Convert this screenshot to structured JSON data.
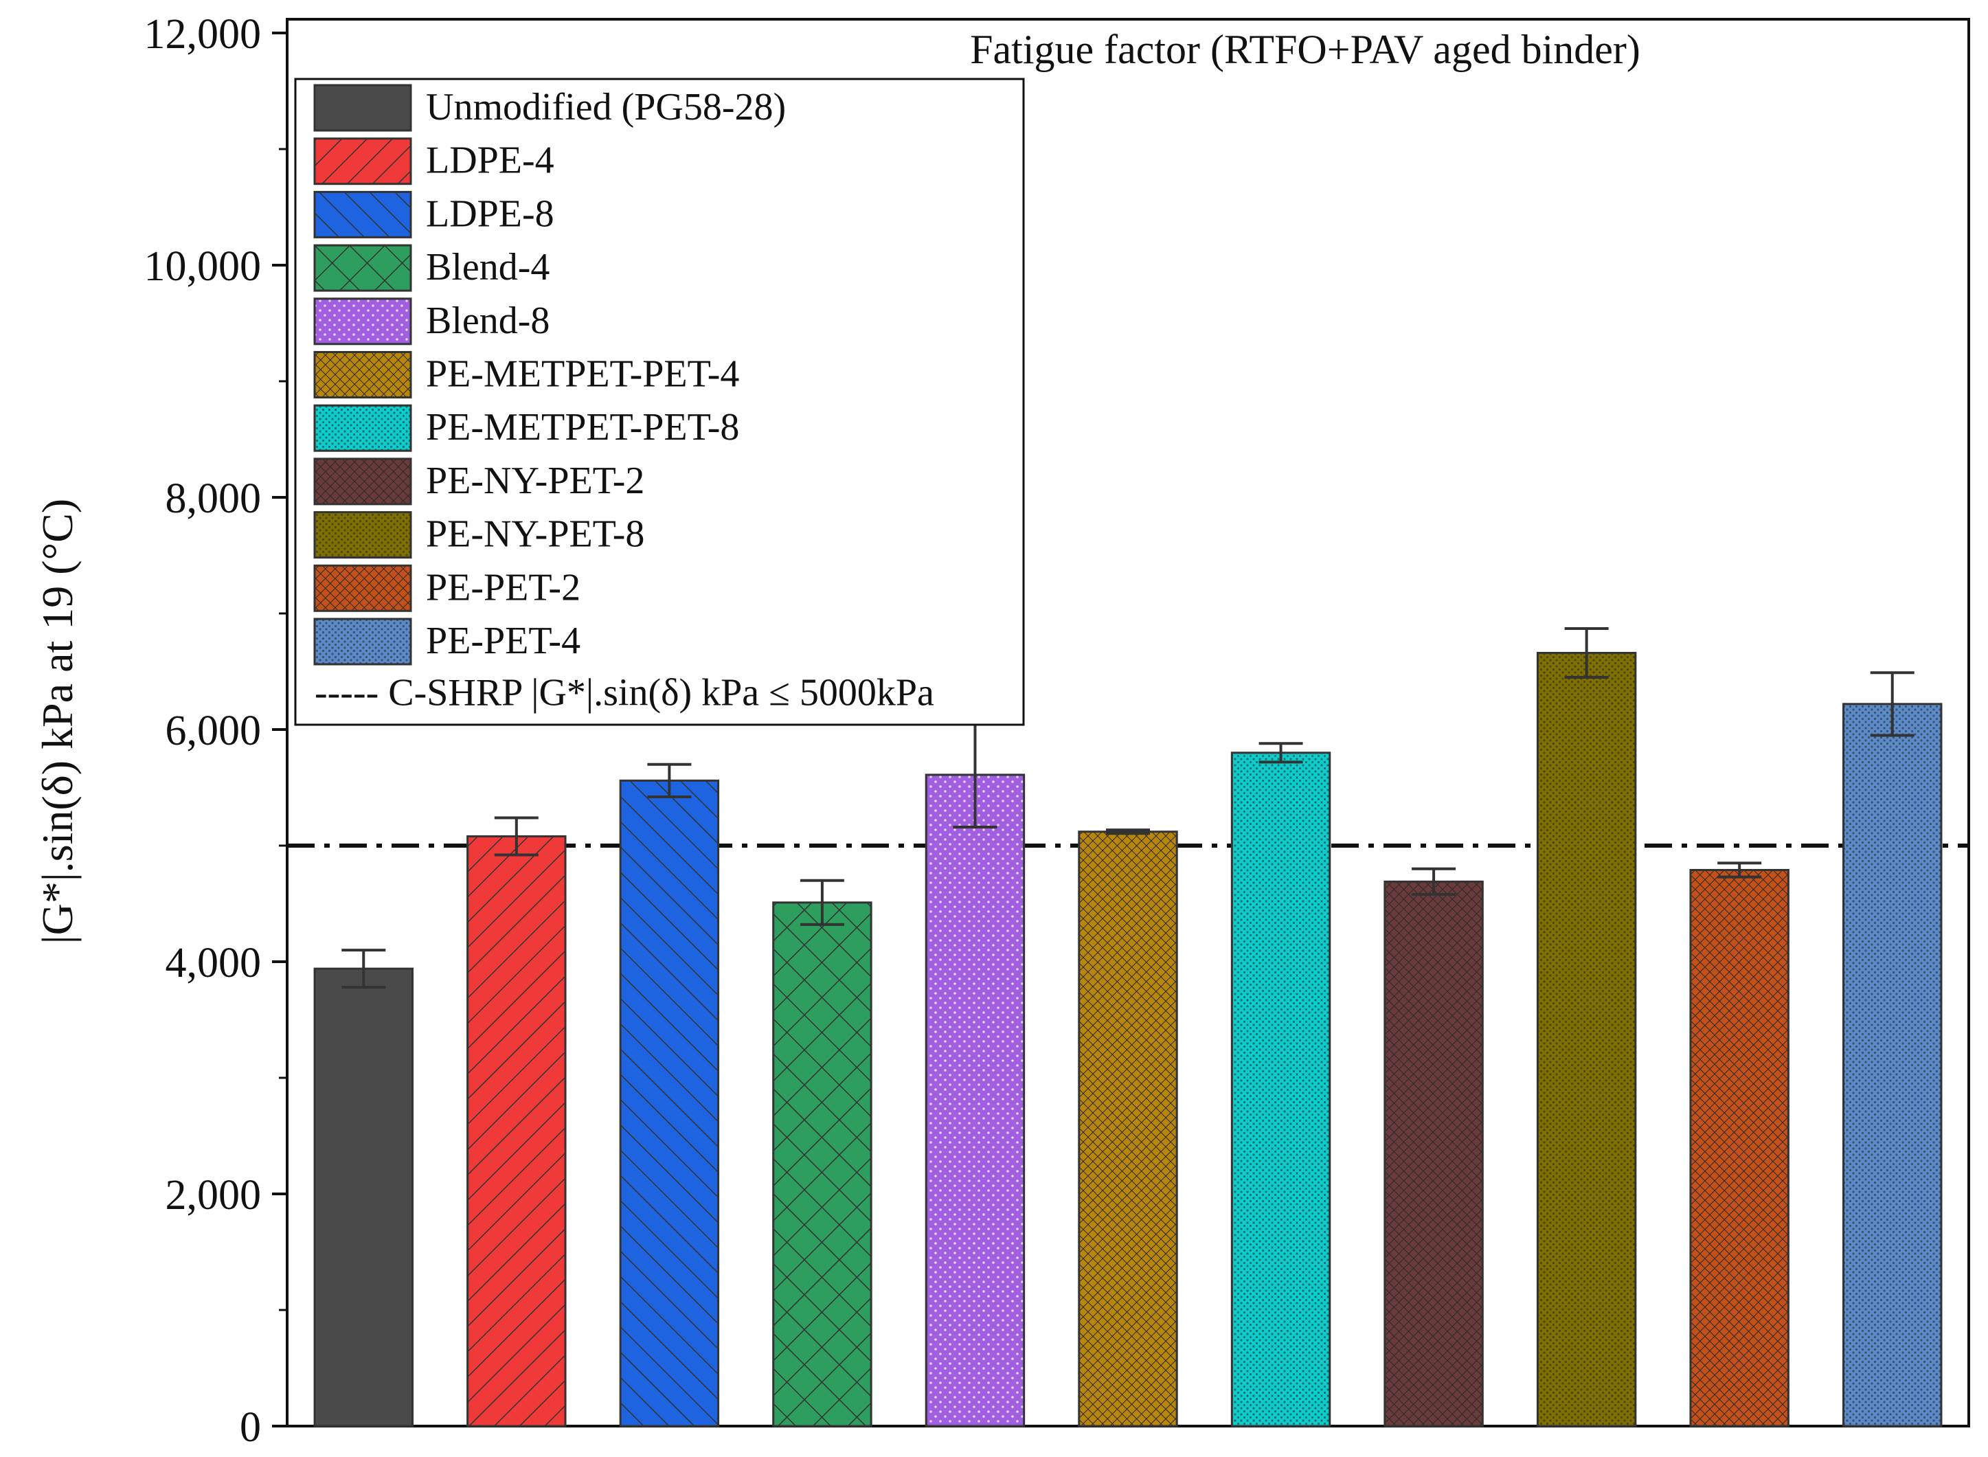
{
  "chart_data": {
    "type": "bar",
    "title": "Fatigue factor (RTFO+PAV aged binder)",
    "ylabel": "|G*|.sin(δ) kPa at 19 (°C)",
    "xlabel": "",
    "ylim": [
      0,
      12000
    ],
    "yticks": [
      0,
      2000,
      4000,
      6000,
      8000,
      10000,
      12000
    ],
    "ytick_labels": [
      "0",
      "2,000",
      "4,000",
      "6,000",
      "8,000",
      "10,000",
      "12,000"
    ],
    "reference_line": {
      "value": 5000,
      "label": "----- C-SHRP |G*|.sin(δ) kPa ≤ 5000kPa"
    },
    "series": [
      {
        "name": "Unmodified (PG58-28)",
        "value": 3940,
        "error": 160,
        "color": "#4a4a4a",
        "pattern": "solid"
      },
      {
        "name": "LDPE-4",
        "value": 5080,
        "error": 160,
        "color": "#f03a3a",
        "pattern": "diag-right"
      },
      {
        "name": "LDPE-8",
        "value": 5560,
        "error": 140,
        "color": "#1e63e0",
        "pattern": "diag-left"
      },
      {
        "name": "Blend-4",
        "value": 4510,
        "error": 190,
        "color": "#2e9e5e",
        "pattern": "crosshatch"
      },
      {
        "name": "Blend-8",
        "value": 5610,
        "error": 450,
        "color": "#a25ee0",
        "pattern": "dots"
      },
      {
        "name": "PE-METPET-PET-4",
        "value": 5120,
        "error": 15,
        "color": "#b8860b",
        "pattern": "dense-cross"
      },
      {
        "name": "PE-METPET-PET-8",
        "value": 5800,
        "error": 80,
        "color": "#0ccccc",
        "pattern": "dense-dots"
      },
      {
        "name": "PE-NY-PET-2",
        "value": 4690,
        "error": 110,
        "color": "#6b3a3a",
        "pattern": "dense-cross"
      },
      {
        "name": "PE-NY-PET-8",
        "value": 6660,
        "error": 210,
        "color": "#7d7000",
        "pattern": "dense-dots"
      },
      {
        "name": "PE-PET-2",
        "value": 4790,
        "error": 60,
        "color": "#c4501a",
        "pattern": "dense-cross"
      },
      {
        "name": "PE-PET-4",
        "value": 6220,
        "error": 270,
        "color": "#5b8ac8",
        "pattern": "dense-dots"
      }
    ]
  }
}
